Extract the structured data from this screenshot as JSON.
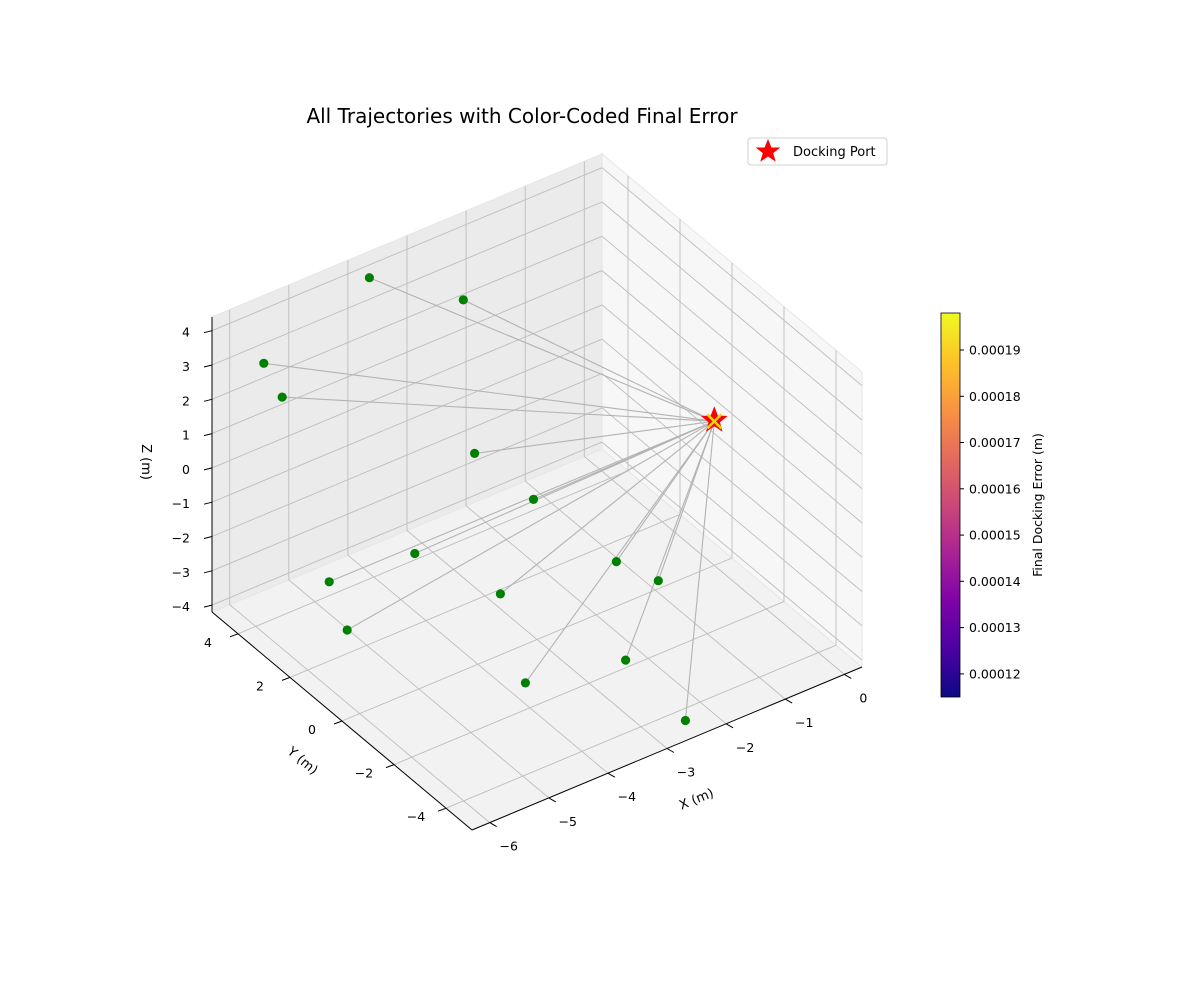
{
  "chart_data": {
    "type": "scatter",
    "projection": "3d",
    "title": "All Trajectories with Color-Coded Final Error",
    "xlabel": "X (m)",
    "ylabel": "Y (m)",
    "zlabel": "Z (m)",
    "xlim": [
      -6.3,
      0.3
    ],
    "ylim": [
      -5,
      5
    ],
    "zlim": [
      -4.2,
      4.4
    ],
    "xticks": [
      -6,
      -5,
      -4,
      -3,
      -2,
      -1,
      0
    ],
    "yticks": [
      -4,
      -2,
      0,
      2,
      4
    ],
    "zticks": [
      -4,
      -3,
      -2,
      -1,
      0,
      1,
      2,
      3,
      4
    ],
    "xtick_labels": [
      "−6",
      "−5",
      "−4",
      "−3",
      "−2",
      "−1",
      "0"
    ],
    "ytick_labels": [
      "−4",
      "−2",
      "0",
      "2",
      "4"
    ],
    "ztick_labels": [
      "−4",
      "−3",
      "−2",
      "−1",
      "0",
      "1",
      "2",
      "3",
      "4"
    ],
    "grid": true,
    "docking_port": {
      "x": 0,
      "y": 0,
      "z": 0,
      "label": "Docking Port",
      "color": "#ff0000"
    },
    "start_points": [
      {
        "x": -5.6,
        "y": 4.6,
        "z": 2.8
      },
      {
        "x": -5.2,
        "y": 4.8,
        "z": 1.4
      },
      {
        "x": -3.9,
        "y": 4.4,
        "z": 4.2
      },
      {
        "x": -2.4,
        "y": 4.2,
        "z": 2.6
      },
      {
        "x": -3.0,
        "y": 2.4,
        "z": -0.3
      },
      {
        "x": -4.8,
        "y": 3.9,
        "z": -3.7
      },
      {
        "x": -5.2,
        "y": 2.3,
        "z": -3.8
      },
      {
        "x": -4.1,
        "y": 2.2,
        "z": -2.3
      },
      {
        "x": -2.4,
        "y": 1.5,
        "z": -1.5
      },
      {
        "x": -3.4,
        "y": 0.5,
        "z": -2.9
      },
      {
        "x": -1.7,
        "y": -0.1,
        "z": -2.8
      },
      {
        "x": -1.3,
        "y": -0.8,
        "z": -3.2
      },
      {
        "x": -3.9,
        "y": -1.6,
        "z": -3.8
      },
      {
        "x": -2.6,
        "y": -2.5,
        "z": -3.5
      },
      {
        "x": -2.6,
        "y": -4.8,
        "z": -3.8
      }
    ],
    "start_color": "#008000",
    "trajectory_color": "#b3b3b3",
    "colorbar": {
      "label": "Final Docking Error (m)",
      "colormap": "plasma",
      "min": 0.000115,
      "max": 0.000198,
      "ticks": [
        0.00012,
        0.00013,
        0.00014,
        0.00015,
        0.00016,
        0.00017,
        0.00018,
        0.00019
      ],
      "tick_labels": [
        "0.00012",
        "0.00013",
        "0.00014",
        "0.00015",
        "0.00016",
        "0.00017",
        "0.00018",
        "0.00019"
      ]
    },
    "legend": {
      "entries": [
        "Docking Port"
      ],
      "position": "top-right"
    }
  }
}
